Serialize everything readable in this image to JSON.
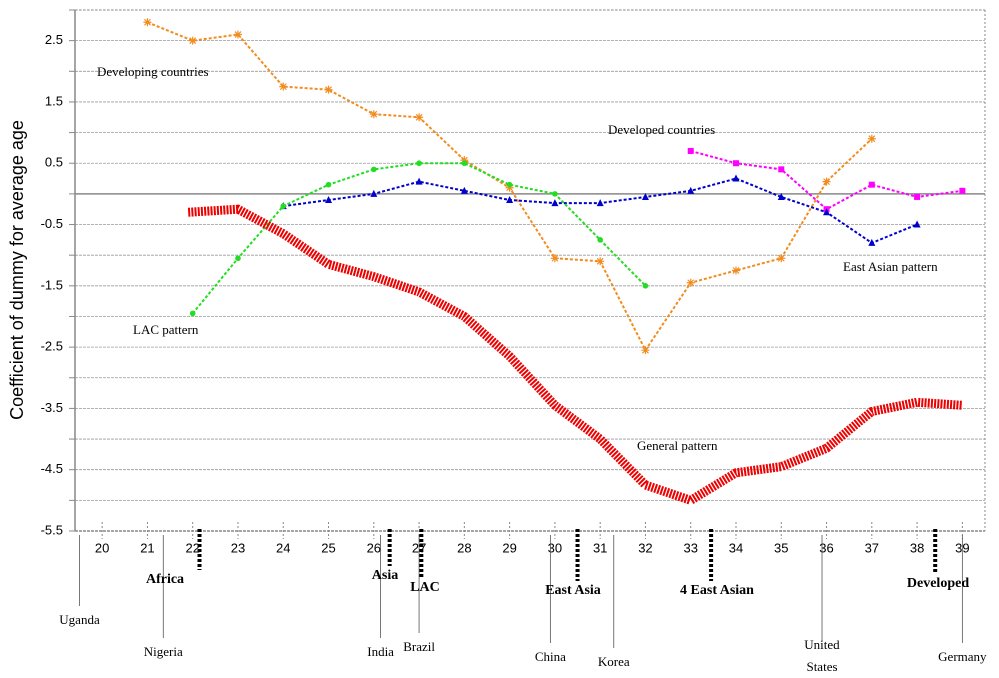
{
  "chart_data": {
    "type": "line",
    "y_label": "Coefficient of dummy for average age",
    "xlim": [
      19.4,
      39.5
    ],
    "ylim": [
      -5.5,
      3.0
    ],
    "xticks": [
      20,
      21,
      22,
      23,
      24,
      25,
      26,
      27,
      28,
      29,
      30,
      31,
      32,
      33,
      34,
      35,
      36,
      37,
      38,
      39
    ],
    "yticks": [
      -5.5,
      -4.5,
      -3.5,
      -2.5,
      -1.5,
      -0.5,
      0.5,
      1.5,
      2.5
    ],
    "minor_yticks": [
      -5,
      -4,
      -3,
      -2,
      -1,
      0,
      1,
      2,
      3
    ],
    "grid": true,
    "series": [
      {
        "name": "Developing countries",
        "color": "#f28c1e",
        "marker": "star",
        "x": [
          21,
          22,
          23,
          24,
          25,
          26,
          27,
          28,
          29,
          30,
          31,
          32,
          33,
          34,
          35,
          36,
          37
        ],
        "values": [
          2.8,
          2.5,
          2.6,
          1.75,
          1.7,
          1.3,
          1.25,
          0.55,
          0.1,
          -1.05,
          -1.1,
          -2.55,
          -1.45,
          -1.25,
          -1.05,
          0.2,
          0.9
        ]
      },
      {
        "name": "Developed countries",
        "color": "#ff00ff",
        "marker": "square",
        "x": [
          33,
          34,
          35,
          36,
          37,
          38,
          39
        ],
        "values": [
          0.7,
          0.5,
          0.4,
          -0.25,
          0.15,
          -0.05,
          0.05
        ]
      },
      {
        "name": "East Asian pattern",
        "color": "#0000cc",
        "marker": "triangle",
        "x": [
          24,
          25,
          26,
          27,
          28,
          29,
          30,
          31,
          32,
          33,
          34,
          35,
          36,
          37,
          38
        ],
        "values": [
          -0.2,
          -0.1,
          0,
          0.2,
          0.05,
          -0.1,
          -0.15,
          -0.15,
          -0.05,
          0.05,
          0.25,
          -0.05,
          -0.3,
          -0.8,
          -0.5
        ]
      },
      {
        "name": "LAC pattern",
        "color": "#22dd22",
        "marker": "circle",
        "x": [
          22,
          23,
          24,
          25,
          26,
          27,
          28,
          29,
          30,
          31,
          32
        ],
        "values": [
          -1.95,
          -1.05,
          -0.2,
          0.15,
          0.4,
          0.5,
          0.5,
          0.15,
          0,
          -0.75,
          -1.5
        ]
      },
      {
        "name": "General pattern",
        "color": "#ee0000",
        "marker": "none",
        "x": [
          21.9,
          23,
          24,
          25,
          26,
          27,
          28,
          29,
          30,
          31,
          32,
          33,
          34,
          35,
          36,
          37,
          38,
          39
        ],
        "values": [
          -0.3,
          -0.25,
          -0.65,
          -1.15,
          -1.35,
          -1.6,
          -2.0,
          -2.65,
          -3.45,
          -4.0,
          -4.75,
          -5.0,
          -4.55,
          -4.45,
          -4.15,
          -3.55,
          -3.4,
          -3.45
        ]
      }
    ],
    "countries": [
      {
        "label": "Uganda",
        "x": 19.5
      },
      {
        "label": "Nigeria",
        "x": 21.35
      },
      {
        "label": "India",
        "x": 26.15
      },
      {
        "label": "Brazil",
        "x": 27
      },
      {
        "label": "China",
        "x": 29.9
      },
      {
        "label": "Korea",
        "x": 31.3
      },
      {
        "label": "United States",
        "x": 35.9
      },
      {
        "label": "Germany",
        "x": 39
      }
    ],
    "groups": [
      {
        "label": "Africa",
        "x": 22.15
      },
      {
        "label": "Asia",
        "x": 26.35
      },
      {
        "label": "LAC",
        "x": 27.05
      },
      {
        "label": "East Asia",
        "x": 30.5
      },
      {
        "label": "4 East Asian",
        "x": 33.45
      },
      {
        "label": "Developed",
        "x": 38.4
      }
    ]
  }
}
